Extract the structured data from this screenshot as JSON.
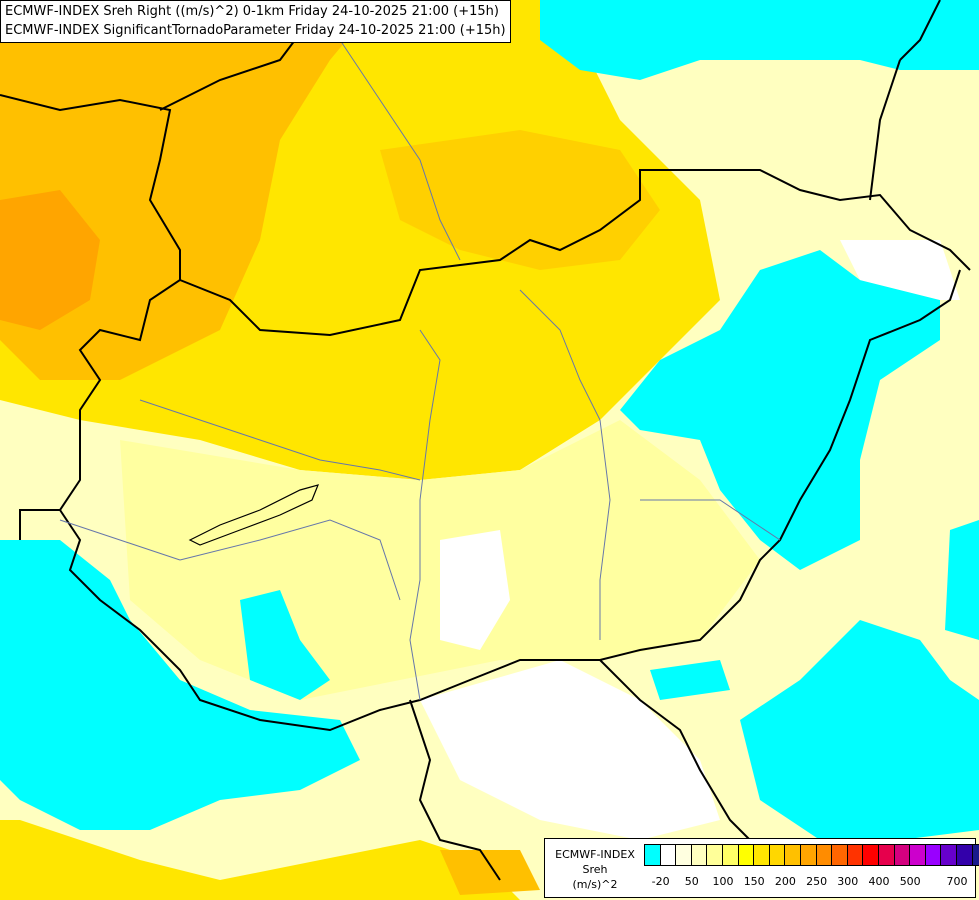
{
  "header": {
    "line1": "ECMWF-INDEX Sreh Right ((m/s)^2) 0-1km Friday 24-10-2025 21:00 (+15h)",
    "line2": "ECMWF-INDEX SignificantTornadoParameter Friday 24-10-2025 21:00 (+15h)"
  },
  "legend": {
    "title1": "ECMWF-INDEX",
    "title2": "Sreh",
    "title3": "(m/s)^2",
    "labels": [
      "-20",
      "50",
      "100",
      "150",
      "200",
      "250",
      "300",
      "400",
      "500",
      "700"
    ],
    "colors": [
      "#00ffff",
      "#ffffff",
      "#ffffe0",
      "#ffffc0",
      "#ffff99",
      "#ffff66",
      "#ffff00",
      "#ffe600",
      "#ffd700",
      "#ffc000",
      "#ffa500",
      "#ff8c00",
      "#ff6600",
      "#ff3300",
      "#ff0000",
      "#e6004c",
      "#d4007f",
      "#cc00cc",
      "#9900ff",
      "#6600cc",
      "#3300aa",
      "#1a1a8c",
      "#000080"
    ]
  }
}
